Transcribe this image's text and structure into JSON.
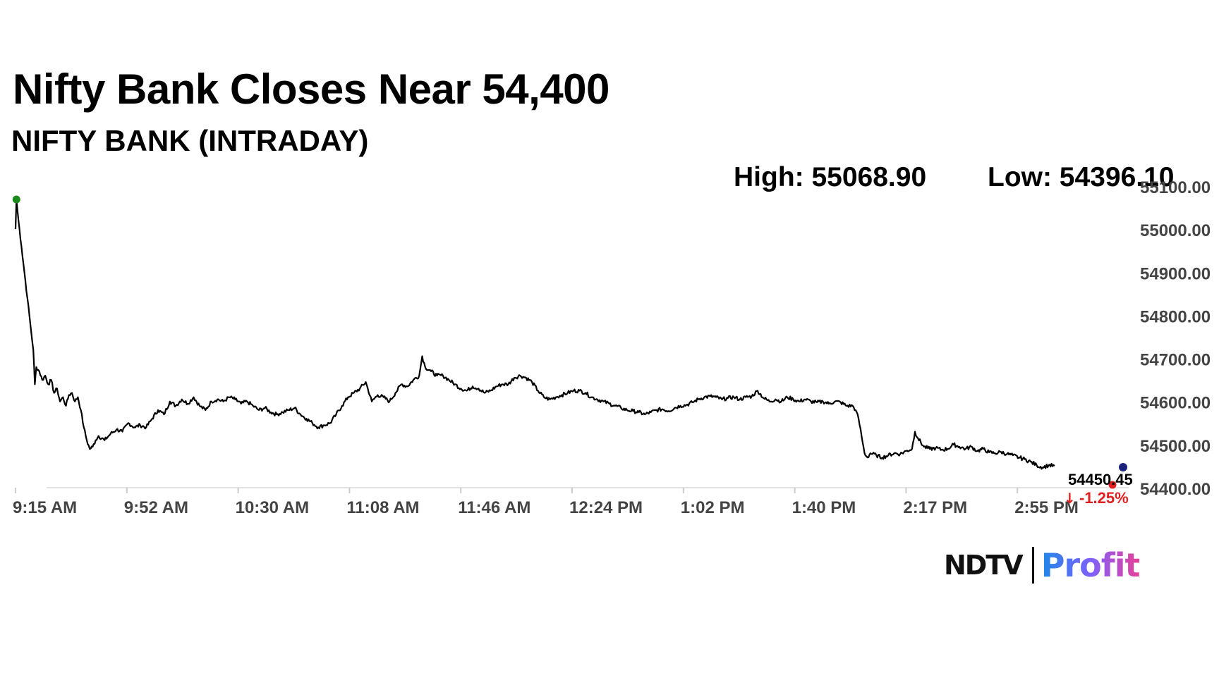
{
  "chart_data": {
    "type": "line",
    "title": "Nifty Bank Closes Near 54,400",
    "subtitle": "NIFTY BANK (INTRADAY)",
    "high_label": "High: 55068.90",
    "low_label": "Low: 54396.10",
    "last_value_label": "54450.45",
    "change_label": "-1.25%",
    "x_tick_labels": [
      "9:15 AM",
      "9:52 AM",
      "10:30 AM",
      "11:08 AM",
      "11:46 AM",
      "12:24 PM",
      "1:02 PM",
      "1:40 PM",
      "2:17 PM",
      "2:55 PM"
    ],
    "y_tick_labels": [
      "55100.00",
      "55000.00",
      "54900.00",
      "54800.00",
      "54700.00",
      "54600.00",
      "54500.00",
      "54400.00"
    ],
    "y_ticks": [
      55100,
      55000,
      54900,
      54800,
      54700,
      54600,
      54500,
      54400
    ],
    "ylim": [
      54400,
      55100
    ],
    "x_unit": "minutes since 9:15 AM",
    "xlim": [
      0,
      375
    ],
    "grid": false,
    "series": [
      {
        "name": "",
        "color": "#000000",
        "points": [
          [
            0,
            55000
          ],
          [
            0.3,
            55068.9
          ],
          [
            1,
            55020
          ],
          [
            2,
            54960
          ],
          [
            3,
            54900
          ],
          [
            4,
            54840
          ],
          [
            5,
            54780
          ],
          [
            6,
            54720
          ],
          [
            6.5,
            54640
          ],
          [
            7,
            54680
          ],
          [
            8,
            54670
          ],
          [
            9,
            54650
          ],
          [
            10,
            54660
          ],
          [
            11,
            54640
          ],
          [
            12,
            54650
          ],
          [
            13,
            54620
          ],
          [
            14,
            54630
          ],
          [
            15,
            54600
          ],
          [
            16,
            54610
          ],
          [
            17,
            54590
          ],
          [
            18,
            54615
          ],
          [
            19,
            54620
          ],
          [
            20,
            54600
          ],
          [
            21,
            54610
          ],
          [
            22,
            54580
          ],
          [
            23,
            54540
          ],
          [
            24,
            54510
          ],
          [
            25,
            54490
          ],
          [
            26,
            54495
          ],
          [
            27,
            54510
          ],
          [
            28,
            54520
          ],
          [
            30,
            54510
          ],
          [
            32,
            54525
          ],
          [
            34,
            54535
          ],
          [
            36,
            54530
          ],
          [
            38,
            54550
          ],
          [
            40,
            54540
          ],
          [
            42,
            54545
          ],
          [
            44,
            54540
          ],
          [
            46,
            54560
          ],
          [
            48,
            54580
          ],
          [
            50,
            54570
          ],
          [
            52,
            54600
          ],
          [
            54,
            54590
          ],
          [
            56,
            54605
          ],
          [
            58,
            54595
          ],
          [
            60,
            54610
          ],
          [
            62,
            54590
          ],
          [
            64,
            54580
          ],
          [
            66,
            54600
          ],
          [
            68,
            54605
          ],
          [
            70,
            54600
          ],
          [
            72,
            54610
          ],
          [
            74,
            54605
          ],
          [
            76,
            54595
          ],
          [
            78,
            54600
          ],
          [
            80,
            54590
          ],
          [
            82,
            54580
          ],
          [
            84,
            54585
          ],
          [
            86,
            54575
          ],
          [
            88,
            54570
          ],
          [
            90,
            54575
          ],
          [
            92,
            54580
          ],
          [
            94,
            54585
          ],
          [
            96,
            54570
          ],
          [
            98,
            54560
          ],
          [
            100,
            54550
          ],
          [
            102,
            54540
          ],
          [
            104,
            54545
          ],
          [
            106,
            54550
          ],
          [
            108,
            54570
          ],
          [
            110,
            54590
          ],
          [
            112,
            54610
          ],
          [
            114,
            54620
          ],
          [
            116,
            54630
          ],
          [
            118,
            54645
          ],
          [
            120,
            54600
          ],
          [
            122,
            54615
          ],
          [
            124,
            54610
          ],
          [
            126,
            54600
          ],
          [
            128,
            54620
          ],
          [
            130,
            54640
          ],
          [
            132,
            54635
          ],
          [
            134,
            54650
          ],
          [
            136,
            54660
          ],
          [
            137,
            54705
          ],
          [
            138,
            54680
          ],
          [
            140,
            54670
          ],
          [
            142,
            54660
          ],
          [
            144,
            54660
          ],
          [
            146,
            54650
          ],
          [
            148,
            54640
          ],
          [
            150,
            54630
          ],
          [
            152,
            54625
          ],
          [
            154,
            54635
          ],
          [
            156,
            54630
          ],
          [
            158,
            54620
          ],
          [
            160,
            54625
          ],
          [
            162,
            54635
          ],
          [
            164,
            54640
          ],
          [
            166,
            54640
          ],
          [
            168,
            54655
          ],
          [
            170,
            54660
          ],
          [
            172,
            54655
          ],
          [
            174,
            54645
          ],
          [
            176,
            54625
          ],
          [
            178,
            54610
          ],
          [
            180,
            54605
          ],
          [
            182,
            54610
          ],
          [
            184,
            54615
          ],
          [
            186,
            54620
          ],
          [
            188,
            54625
          ],
          [
            190,
            54625
          ],
          [
            192,
            54620
          ],
          [
            194,
            54610
          ],
          [
            196,
            54605
          ],
          [
            198,
            54600
          ],
          [
            200,
            54595
          ],
          [
            202,
            54590
          ],
          [
            204,
            54585
          ],
          [
            206,
            54580
          ],
          [
            208,
            54578
          ],
          [
            210,
            54575
          ],
          [
            212,
            54570
          ],
          [
            214,
            54575
          ],
          [
            216,
            54580
          ],
          [
            218,
            54582
          ],
          [
            220,
            54578
          ],
          [
            222,
            54585
          ],
          [
            224,
            54590
          ],
          [
            226,
            54592
          ],
          [
            228,
            54598
          ],
          [
            230,
            54605
          ],
          [
            232,
            54610
          ],
          [
            234,
            54612
          ],
          [
            236,
            54610
          ],
          [
            238,
            54605
          ],
          [
            240,
            54608
          ],
          [
            242,
            54610
          ],
          [
            244,
            54605
          ],
          [
            246,
            54610
          ],
          [
            248,
            54612
          ],
          [
            250,
            54625
          ],
          [
            252,
            54608
          ],
          [
            254,
            54600
          ],
          [
            256,
            54605
          ],
          [
            258,
            54600
          ],
          [
            260,
            54610
          ],
          [
            262,
            54605
          ],
          [
            264,
            54600
          ],
          [
            266,
            54605
          ],
          [
            268,
            54600
          ],
          [
            270,
            54598
          ],
          [
            272,
            54600
          ],
          [
            274,
            54595
          ],
          [
            276,
            54600
          ],
          [
            278,
            54598
          ],
          [
            280,
            54590
          ],
          [
            282,
            54590
          ],
          [
            283,
            54580
          ],
          [
            284,
            54560
          ],
          [
            285,
            54520
          ],
          [
            286,
            54480
          ],
          [
            287,
            54470
          ],
          [
            288,
            54480
          ],
          [
            290,
            54475
          ],
          [
            292,
            54470
          ],
          [
            294,
            54475
          ],
          [
            296,
            54480
          ],
          [
            298,
            54478
          ],
          [
            300,
            54485
          ],
          [
            302,
            54490
          ],
          [
            303,
            54530
          ],
          [
            304,
            54515
          ],
          [
            306,
            54495
          ],
          [
            308,
            54490
          ],
          [
            310,
            54492
          ],
          [
            312,
            54488
          ],
          [
            314,
            54490
          ],
          [
            316,
            54500
          ],
          [
            318,
            54495
          ],
          [
            320,
            54490
          ],
          [
            322,
            54495
          ],
          [
            324,
            54485
          ],
          [
            326,
            54490
          ],
          [
            328,
            54482
          ],
          [
            330,
            54480
          ],
          [
            332,
            54483
          ],
          [
            334,
            54478
          ],
          [
            336,
            54475
          ],
          [
            338,
            54470
          ],
          [
            340,
            54466
          ],
          [
            342,
            54460
          ],
          [
            344,
            54452
          ],
          [
            346,
            54447
          ],
          [
            348,
            54452
          ],
          [
            350,
            54450.45
          ]
        ],
        "start_marker_color": "#1a8a1a",
        "end_marker_color": "#1a237e",
        "last_point_marker_color": "#e02020"
      }
    ]
  }
}
